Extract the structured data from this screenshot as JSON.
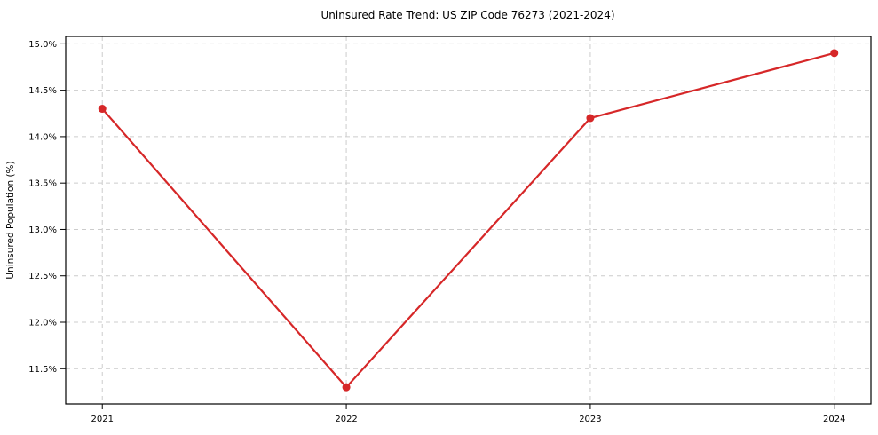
{
  "figure": {
    "title": "Uninsured Rate Trend: US ZIP Code 76273 (2021-2024)"
  },
  "chart_data": {
    "type": "line",
    "title": "Uninsured Rate Trend: US ZIP Code 76273 (2021-2024)",
    "x": [
      2021,
      2022,
      2023,
      2024
    ],
    "values": [
      14.3,
      11.3,
      14.2,
      14.9
    ],
    "xlabel": "",
    "ylabel": "Uninsured Population (%)",
    "xlim": [
      2020.85,
      2024.15
    ],
    "ylim": [
      11.12,
      15.08
    ],
    "xticks": [
      2021,
      2022,
      2023,
      2024
    ],
    "xtick_labels": [
      "2021",
      "2022",
      "2023",
      "2024"
    ],
    "yticks": [
      11.5,
      12.0,
      12.5,
      13.0,
      13.5,
      14.0,
      14.5,
      15.0
    ],
    "ytick_labels": [
      "11.5%",
      "12.0%",
      "12.5%",
      "13.0%",
      "13.5%",
      "14.0%",
      "14.5%",
      "15.0%"
    ],
    "grid": true,
    "grid_line_style": "dashed",
    "grid_color": "#cccccc",
    "line_color": "#d62728",
    "line_width": 2.2,
    "marker": "circle",
    "marker_color": "#d62728",
    "marker_radius": 4.5,
    "spine_color": "#000000",
    "background_color": "#ffffff",
    "legend_position": "none"
  }
}
